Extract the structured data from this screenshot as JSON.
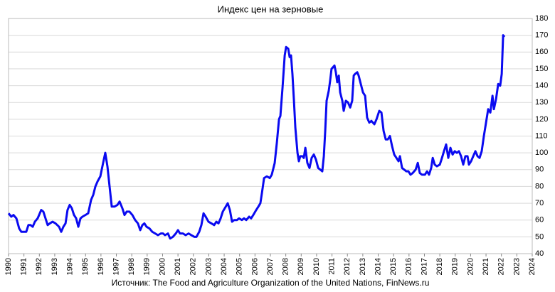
{
  "chart_data": {
    "type": "line",
    "title": "Индекс цен на зерновые",
    "source": "Источник: The Food and Agriculture Organization of the United Nations, FinNews.ru",
    "color": "#0a0af0",
    "grid": true,
    "y_axis_side": "right",
    "xlim": [
      1990,
      2024
    ],
    "xticks": [
      1990,
      1991,
      1992,
      1993,
      1994,
      1995,
      1996,
      1997,
      1998,
      1999,
      2000,
      2001,
      2002,
      2003,
      2004,
      2005,
      2006,
      2007,
      2008,
      2009,
      2010,
      2011,
      2012,
      2013,
      2014,
      2015,
      2016,
      2017,
      2018,
      2019,
      2020,
      2021,
      2022,
      2023,
      2024
    ],
    "ylim": [
      40,
      180
    ],
    "yticks": [
      40,
      50,
      60,
      70,
      80,
      90,
      100,
      110,
      120,
      130,
      140,
      150,
      160,
      170,
      180
    ],
    "x": [
      1990.0,
      1990.18,
      1990.32,
      1990.51,
      1990.69,
      1990.83,
      1991.15,
      1991.29,
      1991.43,
      1991.57,
      1991.71,
      1991.89,
      1992.03,
      1992.12,
      1992.26,
      1992.4,
      1992.54,
      1992.68,
      1992.86,
      1993.05,
      1993.28,
      1993.42,
      1993.56,
      1993.7,
      1993.83,
      1993.97,
      1994.11,
      1994.25,
      1994.39,
      1994.53,
      1994.67,
      1994.8,
      1994.99,
      1995.17,
      1995.36,
      1995.5,
      1995.64,
      1995.78,
      1995.96,
      1996.14,
      1996.28,
      1996.42,
      1996.56,
      1996.7,
      1996.88,
      1997.07,
      1997.21,
      1997.39,
      1997.53,
      1997.67,
      1997.85,
      1998.04,
      1998.22,
      1998.4,
      1998.55,
      1998.69,
      1998.82,
      1998.96,
      1999.15,
      1999.33,
      1999.52,
      1999.7,
      1999.89,
      2000.03,
      2000.16,
      2000.35,
      2000.49,
      2000.67,
      2000.86,
      2001.0,
      2001.13,
      2001.32,
      2001.5,
      2001.69,
      2001.87,
      2002.06,
      2002.2,
      2002.38,
      2002.52,
      2002.66,
      2002.8,
      2002.98,
      2003.17,
      2003.35,
      2003.49,
      2003.63,
      2003.77,
      2003.91,
      2004.04,
      2004.23,
      2004.37,
      2004.51,
      2004.65,
      2004.83,
      2004.97,
      2005.15,
      2005.29,
      2005.43,
      2005.62,
      2005.75,
      2005.89,
      2006.08,
      2006.22,
      2006.35,
      2006.45,
      2006.59,
      2006.77,
      2006.96,
      2007.09,
      2007.28,
      2007.42,
      2007.56,
      2007.65,
      2007.79,
      2007.93,
      2008.02,
      2008.16,
      2008.25,
      2008.34,
      2008.43,
      2008.53,
      2008.62,
      2008.76,
      2008.85,
      2008.94,
      2009.08,
      2009.17,
      2009.27,
      2009.4,
      2009.54,
      2009.68,
      2009.82,
      2009.96,
      2010.1,
      2010.24,
      2010.37,
      2010.47,
      2010.56,
      2010.65,
      2010.79,
      2010.88,
      2010.97,
      2011.07,
      2011.16,
      2011.25,
      2011.34,
      2011.44,
      2011.53,
      2011.67,
      2011.76,
      2011.9,
      2012.04,
      2012.18,
      2012.31,
      2012.41,
      2012.5,
      2012.64,
      2012.73,
      2012.87,
      2013.01,
      2013.15,
      2013.28,
      2013.42,
      2013.56,
      2013.75,
      2013.89,
      2014.07,
      2014.21,
      2014.35,
      2014.49,
      2014.62,
      2014.76,
      2014.9,
      2015.04,
      2015.18,
      2015.32,
      2015.41,
      2015.55,
      2015.69,
      2015.83,
      2015.96,
      2016.1,
      2016.24,
      2016.43,
      2016.57,
      2016.7,
      2016.84,
      2017.03,
      2017.17,
      2017.3,
      2017.44,
      2017.54,
      2017.67,
      2017.81,
      2018.0,
      2018.14,
      2018.27,
      2018.41,
      2018.55,
      2018.69,
      2018.83,
      2018.97,
      2019.11,
      2019.24,
      2019.38,
      2019.52,
      2019.66,
      2019.8,
      2019.89,
      2020.03,
      2020.17,
      2020.31,
      2020.45,
      2020.58,
      2020.72,
      2020.86,
      2021.0,
      2021.14,
      2021.28,
      2021.42,
      2021.51,
      2021.65,
      2021.79,
      2021.92,
      2022.02,
      2022.11,
      2022.2
    ],
    "values": [
      64,
      62,
      63,
      61,
      55,
      53,
      53,
      57,
      57,
      56,
      59,
      61,
      64,
      66,
      65,
      61,
      57,
      58,
      59,
      58,
      56,
      53,
      56,
      58,
      66,
      69,
      67,
      63,
      61,
      56,
      61,
      62,
      63,
      64,
      72,
      75,
      80,
      83,
      86,
      94,
      100,
      92,
      80,
      68,
      68,
      69,
      71,
      67,
      63,
      65,
      65,
      63,
      60,
      58,
      54,
      57,
      58,
      56,
      55,
      53,
      52,
      51,
      52,
      52,
      51,
      52,
      49,
      50,
      52,
      54,
      52,
      52,
      51,
      52,
      51,
      50,
      50,
      53,
      57,
      64,
      62,
      59,
      58,
      57,
      59,
      58,
      61,
      65,
      67,
      70,
      66,
      59,
      60,
      60,
      61,
      60,
      61,
      60,
      62,
      61,
      63,
      66,
      68,
      70,
      76,
      85,
      86,
      85,
      87,
      94,
      106,
      120,
      122,
      139,
      158,
      163,
      162,
      157,
      158,
      147,
      131,
      115,
      100,
      95,
      98,
      98,
      97,
      103,
      94,
      91,
      97,
      99,
      96,
      91,
      90,
      89,
      98,
      113,
      131,
      137,
      143,
      150,
      151,
      152,
      148,
      142,
      146,
      136,
      131,
      125,
      131,
      130,
      127,
      131,
      146,
      147,
      148,
      146,
      141,
      136,
      134,
      121,
      118,
      119,
      117,
      120,
      125,
      124,
      113,
      108,
      108,
      110,
      104,
      99,
      97,
      95,
      98,
      91,
      90,
      89,
      89,
      87,
      88,
      90,
      94,
      88,
      87,
      87,
      89,
      87,
      91,
      97,
      93,
      92,
      93,
      97,
      101,
      105,
      97,
      103,
      99,
      101,
      100,
      101,
      98,
      93,
      98,
      98,
      93,
      95,
      98,
      101,
      98,
      97,
      101,
      110,
      118,
      126,
      124,
      134,
      126,
      132,
      141,
      140,
      147,
      170,
      169
    ]
  }
}
